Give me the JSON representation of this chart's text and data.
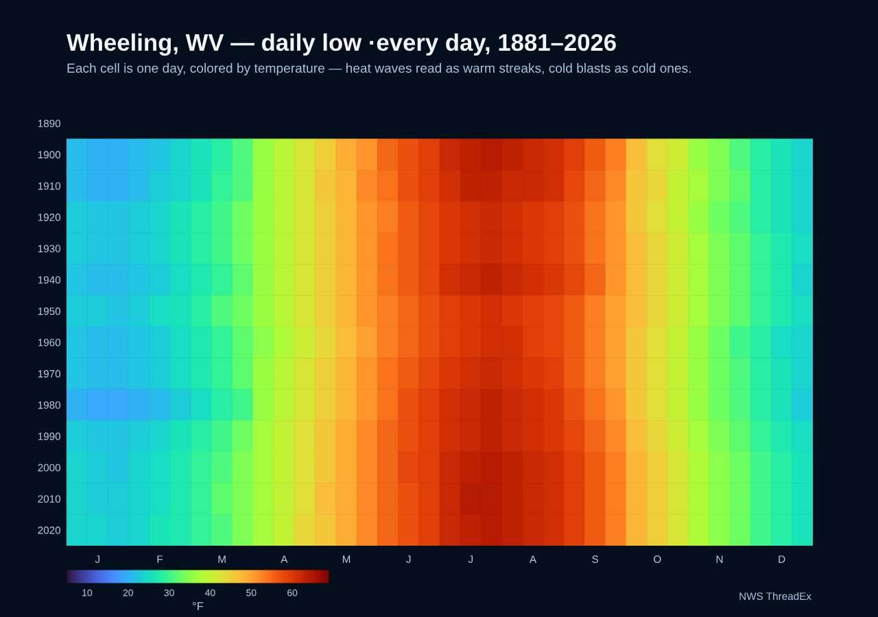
{
  "chart_data": {
    "type": "heatmap",
    "title": "Wheeling, WV — daily low ·every day, 1881–2026",
    "subtitle": "Each cell is one day, colored by temperature — heat waves read as warm streaks, cold blasts as cold ones.",
    "categories": [
      null,
      "J",
      null,
      null,
      "F",
      null,
      null,
      "M",
      null,
      null,
      "A",
      null,
      null,
      "M",
      null,
      null,
      "J",
      null,
      null,
      "J",
      null,
      null,
      "A",
      null,
      null,
      "S",
      null,
      null,
      "O",
      null,
      null,
      "N",
      null,
      null,
      "D",
      null
    ],
    "y_categories": [
      "1890",
      "1900",
      "1910",
      "1920",
      "1930",
      "1940",
      "1950",
      "1960",
      "1970",
      "1980",
      "1990",
      "2000",
      "2010",
      "2020"
    ],
    "cells": [
      [
        null,
        null,
        null,
        null,
        null,
        null,
        null,
        null,
        null,
        null,
        null,
        null,
        null,
        null,
        null,
        null,
        null,
        null,
        null,
        null,
        null,
        null,
        null,
        null,
        null,
        null,
        null,
        null,
        null,
        null,
        null,
        null,
        null,
        null,
        null,
        null
      ],
      [
        21,
        20,
        20,
        21,
        22,
        24,
        26,
        28,
        31,
        36,
        39,
        42,
        45,
        49,
        51,
        55,
        57,
        59,
        62,
        63,
        64,
        63,
        62,
        61,
        59,
        56,
        53,
        47,
        43,
        41,
        36,
        34,
        31,
        28,
        26,
        24
      ],
      [
        21,
        20,
        20,
        21,
        23,
        24,
        26,
        29,
        31,
        36,
        39,
        42,
        46,
        48,
        52,
        54,
        57,
        59,
        61,
        63,
        63,
        62,
        62,
        61,
        58,
        55,
        52,
        46,
        44,
        40,
        37,
        34,
        32,
        28,
        26,
        24
      ],
      [
        23,
        22,
        22,
        23,
        24,
        26,
        28,
        30,
        33,
        36,
        39,
        42,
        45,
        48,
        51,
        53,
        56,
        58,
        60,
        61,
        62,
        61,
        60,
        59,
        57,
        54,
        51,
        46,
        43,
        40,
        36,
        33,
        31,
        28,
        26,
        24
      ],
      [
        23,
        22,
        22,
        23,
        24,
        26,
        28,
        30,
        33,
        36,
        39,
        42,
        45,
        48,
        51,
        54,
        56,
        58,
        60,
        61,
        62,
        61,
        60,
        59,
        57,
        54,
        51,
        47,
        44,
        41,
        37,
        34,
        32,
        29,
        27,
        25
      ],
      [
        22,
        21,
        21,
        22,
        23,
        25,
        27,
        29,
        32,
        36,
        39,
        42,
        45,
        48,
        51,
        54,
        56,
        58,
        61,
        62,
        63,
        62,
        61,
        60,
        58,
        55,
        51,
        47,
        44,
        41,
        37,
        34,
        32,
        29,
        27,
        24
      ],
      [
        23,
        23,
        22,
        23,
        25,
        26,
        28,
        31,
        33,
        36,
        39,
        42,
        45,
        48,
        51,
        53,
        55,
        57,
        59,
        60,
        61,
        60,
        59,
        58,
        56,
        53,
        50,
        47,
        44,
        41,
        37,
        34,
        32,
        29,
        27,
        25
      ],
      [
        22,
        21,
        21,
        22,
        23,
        25,
        27,
        29,
        32,
        35,
        38,
        41,
        44,
        47,
        50,
        53,
        55,
        57,
        59,
        60,
        61,
        61,
        59,
        58,
        56,
        53,
        50,
        46,
        43,
        40,
        36,
        33,
        30,
        28,
        25,
        24
      ],
      [
        22,
        21,
        21,
        22,
        23,
        25,
        27,
        29,
        32,
        36,
        39,
        42,
        45,
        48,
        51,
        54,
        56,
        58,
        60,
        61,
        62,
        61,
        60,
        59,
        56,
        53,
        50,
        46,
        43,
        40,
        36,
        33,
        31,
        28,
        26,
        24
      ],
      [
        20,
        19,
        19,
        20,
        21,
        23,
        25,
        28,
        30,
        36,
        39,
        42,
        45,
        48,
        51,
        54,
        57,
        59,
        61,
        62,
        63,
        62,
        61,
        60,
        57,
        54,
        51,
        46,
        43,
        40,
        36,
        33,
        31,
        28,
        26,
        23
      ],
      [
        23,
        22,
        22,
        23,
        24,
        26,
        28,
        30,
        33,
        37,
        40,
        43,
        46,
        49,
        52,
        55,
        57,
        59,
        61,
        62,
        63,
        62,
        61,
        60,
        58,
        55,
        52,
        47,
        44,
        41,
        37,
        34,
        32,
        29,
        27,
        25
      ],
      [
        24,
        23,
        22,
        24,
        25,
        27,
        29,
        31,
        34,
        37,
        40,
        43,
        46,
        49,
        52,
        55,
        58,
        59,
        62,
        63,
        64,
        63,
        62,
        61,
        59,
        56,
        53,
        48,
        45,
        42,
        38,
        35,
        33,
        30,
        28,
        26
      ],
      [
        24,
        23,
        23,
        24,
        25,
        27,
        29,
        32,
        34,
        37,
        40,
        43,
        47,
        49,
        52,
        55,
        57,
        59,
        62,
        64,
        64,
        63,
        62,
        61,
        59,
        56,
        53,
        48,
        45,
        42,
        38,
        35,
        33,
        30,
        28,
        26
      ],
      [
        24,
        24,
        23,
        24,
        26,
        27,
        29,
        31,
        34,
        37,
        40,
        44,
        46,
        49,
        52,
        55,
        57,
        59,
        62,
        63,
        64,
        63,
        62,
        61,
        59,
        56,
        53,
        48,
        45,
        42,
        38,
        35,
        33,
        30,
        28,
        26
      ]
    ],
    "clim": [
      5,
      69
    ],
    "cticks": [
      10,
      20,
      30,
      40,
      50,
      60
    ],
    "clabel": "°F",
    "annotations": [
      "NWS ThreadEx"
    ]
  }
}
